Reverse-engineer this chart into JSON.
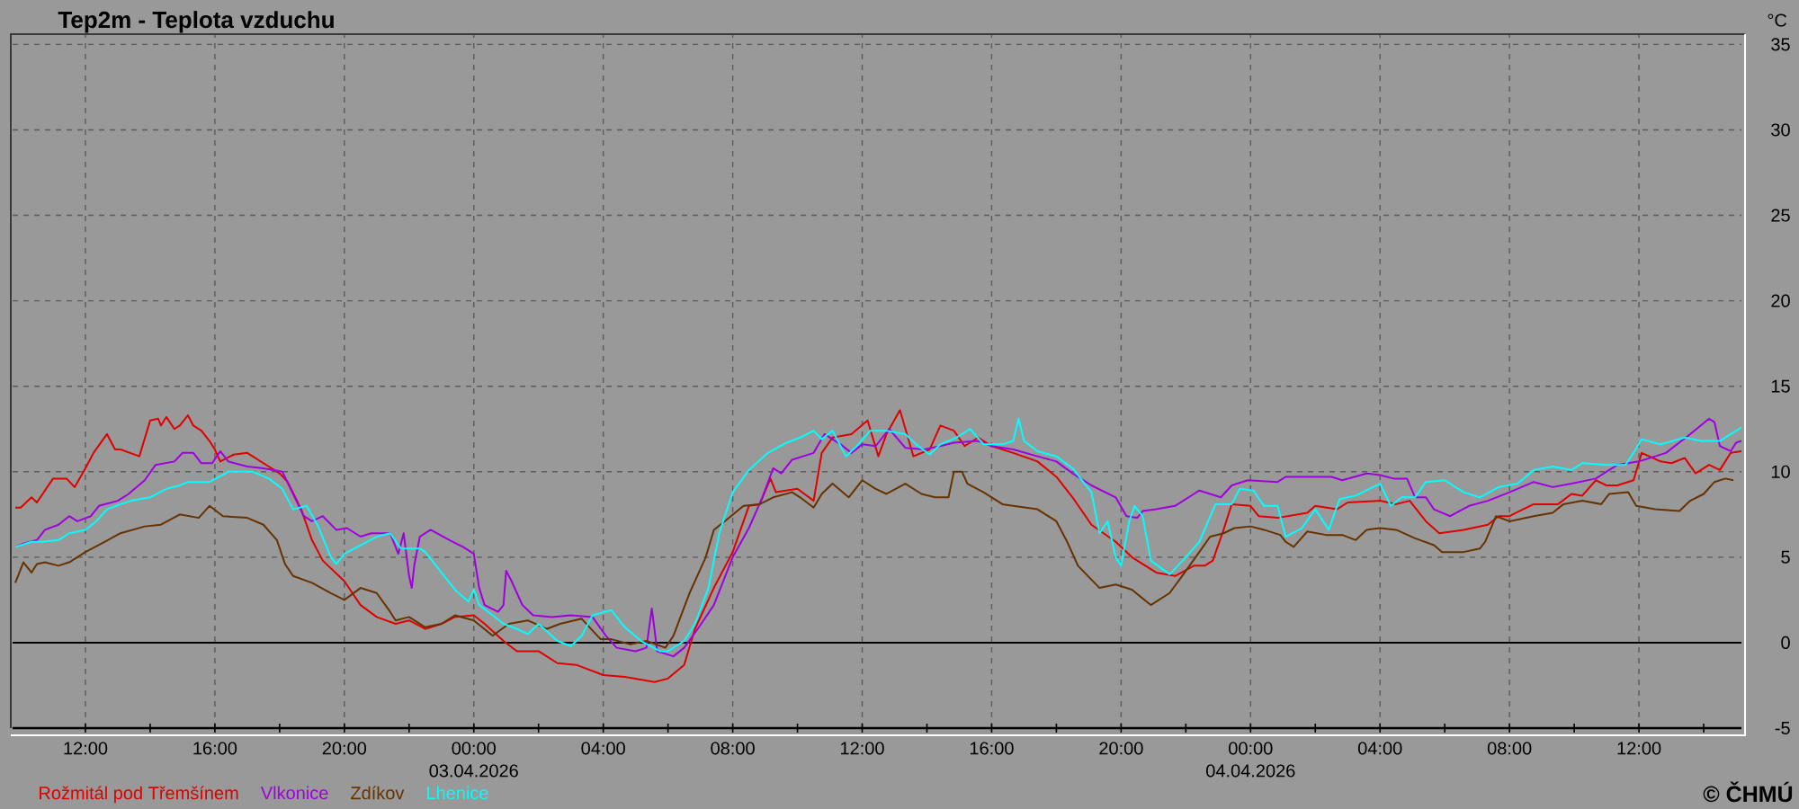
{
  "chart_data": {
    "type": "line",
    "title": "Tep2m - Teplota vzduchu",
    "ylabel": "°C",
    "xlim": [
      "2026-04-02T09:45",
      "2026-04-04T15:10"
    ],
    "ylim": [
      -5,
      35.6
    ],
    "xticks": [
      {
        "value": "2026-04-02T12:00",
        "label": "12:00"
      },
      {
        "value": "2026-04-02T14:00",
        "label": null
      },
      {
        "value": "2026-04-02T16:00",
        "label": "16:00"
      },
      {
        "value": "2026-04-02T18:00",
        "label": null
      },
      {
        "value": "2026-04-02T20:00",
        "label": "20:00"
      },
      {
        "value": "2026-04-02T22:00",
        "label": null
      },
      {
        "value": "2026-04-03T00:00",
        "label": "00:00 03.04.2026"
      },
      {
        "value": "2026-04-03T02:00",
        "label": null
      },
      {
        "value": "2026-04-03T04:00",
        "label": "04:00"
      },
      {
        "value": "2026-04-03T06:00",
        "label": null
      },
      {
        "value": "2026-04-03T08:00",
        "label": "08:00"
      },
      {
        "value": "2026-04-03T10:00",
        "label": null
      },
      {
        "value": "2026-04-03T12:00",
        "label": "12:00"
      },
      {
        "value": "2026-04-03T14:00",
        "label": null
      },
      {
        "value": "2026-04-03T16:00",
        "label": "16:00"
      },
      {
        "value": "2026-04-03T18:00",
        "label": null
      },
      {
        "value": "2026-04-03T20:00",
        "label": "20:00"
      },
      {
        "value": "2026-04-03T22:00",
        "label": null
      },
      {
        "value": "2026-04-04T00:00",
        "label": "00:00 04.04.2026"
      },
      {
        "value": "2026-04-04T02:00",
        "label": null
      },
      {
        "value": "2026-04-04T04:00",
        "label": "04:00"
      },
      {
        "value": "2026-04-04T06:00",
        "label": null
      },
      {
        "value": "2026-04-04T08:00",
        "label": "08:00"
      },
      {
        "value": "2026-04-04T10:00",
        "label": null
      },
      {
        "value": "2026-04-04T12:00",
        "label": "12:00"
      },
      {
        "value": "2026-04-04T14:00",
        "label": null
      }
    ],
    "yticks": [
      -5,
      0,
      5,
      10,
      15,
      20,
      25,
      30,
      35
    ],
    "grid": true,
    "legend": "bottom left",
    "ref_lines": [
      {
        "axis": "y",
        "value": 0,
        "color": "#000000"
      }
    ],
    "annotations": [
      "© ČHMÚ"
    ],
    "series": [
      {
        "name": "Rožmitál pod Třemšínem",
        "color": "#e00000",
        "x": [
          "2026-04-02T09:50",
          "2026-04-02T10:00",
          "2026-04-02T10:20",
          "2026-04-02T10:30",
          "2026-04-02T11:00",
          "2026-04-02T11:25",
          "2026-04-02T11:40",
          "2026-04-02T12:00",
          "2026-04-02T12:15",
          "2026-04-02T12:40",
          "2026-04-02T12:55",
          "2026-04-02T13:05",
          "2026-04-02T13:40",
          "2026-04-02T14:00",
          "2026-04-02T14:15",
          "2026-04-02T14:20",
          "2026-04-02T14:30",
          "2026-04-02T14:45",
          "2026-04-02T14:55",
          "2026-04-02T15:10",
          "2026-04-02T15:20",
          "2026-04-02T15:35",
          "2026-04-02T15:50",
          "2026-04-02T16:00",
          "2026-04-02T16:10",
          "2026-04-02T16:35",
          "2026-04-02T17:00",
          "2026-04-02T17:30",
          "2026-04-02T18:00",
          "2026-04-02T18:15",
          "2026-04-02T18:40",
          "2026-04-02T19:00",
          "2026-04-02T19:20",
          "2026-04-02T20:00",
          "2026-04-02T20:30",
          "2026-04-02T21:00",
          "2026-04-02T21:35",
          "2026-04-02T22:00",
          "2026-04-02T22:30",
          "2026-04-02T23:00",
          "2026-04-02T23:25",
          "2026-04-03T00:00",
          "2026-04-03T00:20",
          "2026-04-03T00:55",
          "2026-04-03T01:20",
          "2026-04-03T02:00",
          "2026-04-03T02:35",
          "2026-04-03T03:10",
          "2026-04-03T04:00",
          "2026-04-03T04:40",
          "2026-04-03T05:35",
          "2026-04-03T06:00",
          "2026-04-03T06:30",
          "2026-04-03T06:50",
          "2026-04-03T07:25",
          "2026-04-03T08:00",
          "2026-04-03T08:30",
          "2026-04-03T08:50",
          "2026-04-03T09:10",
          "2026-04-03T09:20",
          "2026-04-03T10:00",
          "2026-04-03T10:30",
          "2026-04-03T10:45",
          "2026-04-03T11:05",
          "2026-04-03T11:40",
          "2026-04-03T12:10",
          "2026-04-03T12:30",
          "2026-04-03T12:45",
          "2026-04-03T13:10",
          "2026-04-03T13:35",
          "2026-04-03T14:05",
          "2026-04-03T14:25",
          "2026-04-03T14:50",
          "2026-04-03T15:10",
          "2026-04-03T15:35",
          "2026-04-03T16:00",
          "2026-04-03T16:40",
          "2026-04-03T17:25",
          "2026-04-03T18:00",
          "2026-04-03T18:30",
          "2026-04-03T19:05",
          "2026-04-03T19:50",
          "2026-04-03T20:20",
          "2026-04-03T21:05",
          "2026-04-03T21:40",
          "2026-04-03T22:15",
          "2026-04-03T22:35",
          "2026-04-03T22:50",
          "2026-04-03T23:10",
          "2026-04-03T23:25",
          "2026-04-04T00:00",
          "2026-04-04T00:15",
          "2026-04-04T00:50",
          "2026-04-04T01:45",
          "2026-04-04T02:00",
          "2026-04-04T02:40",
          "2026-04-04T03:00",
          "2026-04-04T04:00",
          "2026-04-04T04:30",
          "2026-04-04T04:55",
          "2026-04-04T05:25",
          "2026-04-04T05:50",
          "2026-04-04T06:35",
          "2026-04-04T07:20",
          "2026-04-04T07:40",
          "2026-04-04T08:00",
          "2026-04-04T08:25",
          "2026-04-04T08:45",
          "2026-04-04T09:30",
          "2026-04-04T09:55",
          "2026-04-04T10:15",
          "2026-04-04T10:40",
          "2026-04-04T11:00",
          "2026-04-04T11:20",
          "2026-04-04T11:50",
          "2026-04-04T12:05",
          "2026-04-04T12:40",
          "2026-04-04T13:00",
          "2026-04-04T13:25",
          "2026-04-04T13:45",
          "2026-04-04T14:10",
          "2026-04-04T14:30",
          "2026-04-04T14:50",
          "2026-04-04T15:10"
        ],
        "values": [
          7.9,
          7.9,
          8.5,
          8.2,
          9.6,
          9.6,
          9.1,
          10.2,
          11.1,
          12.2,
          11.3,
          11.3,
          10.9,
          13.0,
          13.1,
          12.7,
          13.2,
          12.5,
          12.7,
          13.3,
          12.7,
          12.4,
          11.8,
          11.3,
          10.6,
          11.0,
          11.1,
          10.5,
          9.9,
          9.4,
          7.8,
          6.0,
          4.8,
          3.6,
          2.2,
          1.5,
          1.1,
          1.3,
          0.8,
          1.1,
          1.5,
          1.6,
          1.1,
          0.1,
          -0.5,
          -0.5,
          -1.2,
          -1.3,
          -1.9,
          -2.0,
          -2.3,
          -2.1,
          -1.3,
          0.8,
          3.2,
          5.3,
          8.0,
          8.1,
          9.6,
          8.8,
          9.0,
          8.3,
          11.1,
          12.0,
          12.2,
          13.0,
          10.9,
          12.2,
          13.6,
          10.9,
          11.3,
          12.7,
          12.4,
          11.5,
          12.0,
          11.5,
          11.1,
          10.6,
          9.7,
          8.5,
          6.9,
          5.9,
          5.0,
          4.1,
          3.9,
          4.5,
          4.5,
          4.8,
          6.6,
          8.1,
          8.0,
          7.4,
          7.3,
          7.6,
          8.0,
          7.8,
          8.2,
          8.3,
          8.1,
          8.3,
          7.1,
          6.4,
          6.6,
          6.9,
          7.4,
          7.4,
          7.8,
          8.1,
          8.1,
          8.7,
          8.6,
          9.5,
          9.2,
          9.2,
          9.5,
          11.1,
          10.6,
          10.5,
          10.8,
          9.9,
          10.4,
          10.1,
          11.1,
          11.2
        ]
      },
      {
        "name": "Vlkonice",
        "color": "#a000e0",
        "x": [
          "2026-04-02T09:50",
          "2026-04-02T10:05",
          "2026-04-02T10:30",
          "2026-04-02T10:45",
          "2026-04-02T11:10",
          "2026-04-02T11:30",
          "2026-04-02T11:45",
          "2026-04-02T12:10",
          "2026-04-02T12:25",
          "2026-04-02T13:00",
          "2026-04-02T13:20",
          "2026-04-02T13:50",
          "2026-04-02T14:10",
          "2026-04-02T14:45",
          "2026-04-02T15:00",
          "2026-04-02T15:20",
          "2026-04-02T15:35",
          "2026-04-02T15:55",
          "2026-04-02T16:10",
          "2026-04-02T16:25",
          "2026-04-02T17:00",
          "2026-04-02T17:30",
          "2026-04-02T18:05",
          "2026-04-02T18:25",
          "2026-04-02T18:45",
          "2026-04-02T19:00",
          "2026-04-02T19:20",
          "2026-04-02T19:45",
          "2026-04-02T20:05",
          "2026-04-02T20:30",
          "2026-04-02T20:50",
          "2026-04-02T21:25",
          "2026-04-02T21:40",
          "2026-04-02T21:50",
          "2026-04-02T22:00",
          "2026-04-02T22:05",
          "2026-04-02T22:10",
          "2026-04-02T22:20",
          "2026-04-02T22:40",
          "2026-04-02T23:15",
          "2026-04-02T23:40",
          "2026-04-03T00:00",
          "2026-04-03T00:10",
          "2026-04-03T00:20",
          "2026-04-03T00:45",
          "2026-04-03T00:55",
          "2026-04-03T01:00",
          "2026-04-03T01:10",
          "2026-04-03T01:30",
          "2026-04-03T01:50",
          "2026-04-03T02:25",
          "2026-04-03T03:00",
          "2026-04-03T03:40",
          "2026-04-03T04:05",
          "2026-04-03T04:25",
          "2026-04-03T05:00",
          "2026-04-03T05:20",
          "2026-04-03T05:30",
          "2026-04-03T05:40",
          "2026-04-03T05:50",
          "2026-04-03T06:10",
          "2026-04-03T06:30",
          "2026-04-03T06:55",
          "2026-04-03T07:25",
          "2026-04-03T08:00",
          "2026-04-03T08:30",
          "2026-04-03T08:55",
          "2026-04-03T09:15",
          "2026-04-03T09:30",
          "2026-04-03T09:50",
          "2026-04-03T10:30",
          "2026-04-03T10:50",
          "2026-04-03T11:20",
          "2026-04-03T11:40",
          "2026-04-03T12:00",
          "2026-04-03T12:25",
          "2026-04-03T12:50",
          "2026-04-03T13:20",
          "2026-04-03T13:55",
          "2026-04-03T14:25",
          "2026-04-03T14:50",
          "2026-04-03T15:35",
          "2026-04-03T16:00",
          "2026-04-03T16:40",
          "2026-04-03T17:25",
          "2026-04-03T18:00",
          "2026-04-03T18:30",
          "2026-04-03T19:05",
          "2026-04-03T19:50",
          "2026-04-03T20:10",
          "2026-04-03T20:30",
          "2026-04-03T20:40",
          "2026-04-03T21:05",
          "2026-04-03T21:40",
          "2026-04-03T22:15",
          "2026-04-03T22:25",
          "2026-04-03T22:45",
          "2026-04-03T23:05",
          "2026-04-03T23:25",
          "2026-04-03T23:55",
          "2026-04-04T00:50",
          "2026-04-04T01:05",
          "2026-04-04T02:30",
          "2026-04-04T02:50",
          "2026-04-04T03:35",
          "2026-04-04T04:00",
          "2026-04-04T04:25",
          "2026-04-04T04:50",
          "2026-04-04T05:05",
          "2026-04-04T05:25",
          "2026-04-04T05:40",
          "2026-04-04T06:10",
          "2026-04-04T06:45",
          "2026-04-04T07:20",
          "2026-04-04T08:00",
          "2026-04-04T08:45",
          "2026-04-04T09:20",
          "2026-04-04T09:55",
          "2026-04-04T10:40",
          "2026-04-04T11:20",
          "2026-04-04T12:00",
          "2026-04-04T12:50",
          "2026-04-04T13:35",
          "2026-04-04T14:10",
          "2026-04-04T14:20",
          "2026-04-04T14:30",
          "2026-04-04T14:50",
          "2026-04-04T15:00",
          "2026-04-04T15:10"
        ],
        "values": [
          5.6,
          5.8,
          6.0,
          6.6,
          6.9,
          7.4,
          7.1,
          7.4,
          8.0,
          8.3,
          8.7,
          9.5,
          10.4,
          10.6,
          11.1,
          11.1,
          10.5,
          10.5,
          11.2,
          10.6,
          10.3,
          10.2,
          10.0,
          8.7,
          7.4,
          7.1,
          7.4,
          6.6,
          6.7,
          6.2,
          6.4,
          6.4,
          5.2,
          6.4,
          3.9,
          3.2,
          4.6,
          6.2,
          6.6,
          6.0,
          5.6,
          5.2,
          3.2,
          2.2,
          1.8,
          2.2,
          4.2,
          3.6,
          2.2,
          1.6,
          1.5,
          1.6,
          1.5,
          0.4,
          -0.3,
          -0.5,
          -0.3,
          2.0,
          -0.5,
          -0.6,
          -0.8,
          -0.3,
          0.8,
          2.2,
          5.0,
          6.7,
          8.5,
          10.2,
          9.9,
          10.7,
          11.1,
          12.2,
          11.6,
          11.1,
          11.6,
          11.5,
          12.5,
          11.4,
          11.3,
          11.5,
          11.7,
          11.8,
          11.5,
          11.3,
          10.9,
          10.6,
          9.9,
          9.2,
          8.5,
          7.4,
          7.3,
          7.7,
          7.8,
          8.0,
          8.7,
          8.9,
          8.7,
          8.5,
          9.2,
          9.5,
          9.4,
          9.7,
          9.7,
          9.5,
          9.9,
          9.8,
          9.6,
          9.6,
          8.5,
          8.5,
          7.8,
          7.4,
          8.0,
          8.3,
          8.8,
          9.4,
          9.1,
          9.3,
          9.6,
          10.4,
          10.6,
          11.1,
          12.2,
          13.1,
          12.9,
          11.5,
          11.2,
          11.7,
          11.8
        ]
      },
      {
        "name": "Zdíkov",
        "color": "#663300",
        "x": [
          "2026-04-02T09:50",
          "2026-04-02T10:05",
          "2026-04-02T10:20",
          "2026-04-02T10:30",
          "2026-04-02T10:45",
          "2026-04-02T11:10",
          "2026-04-02T11:30",
          "2026-04-02T12:00",
          "2026-04-02T12:30",
          "2026-04-02T13:05",
          "2026-04-02T13:50",
          "2026-04-02T14:20",
          "2026-04-02T14:55",
          "2026-04-02T15:30",
          "2026-04-02T15:50",
          "2026-04-02T16:15",
          "2026-04-02T17:00",
          "2026-04-02T17:30",
          "2026-04-02T17:55",
          "2026-04-02T18:10",
          "2026-04-02T18:25",
          "2026-04-02T19:00",
          "2026-04-02T19:35",
          "2026-04-02T20:00",
          "2026-04-02T20:30",
          "2026-04-02T21:00",
          "2026-04-02T21:25",
          "2026-04-02T21:35",
          "2026-04-02T22:00",
          "2026-04-02T22:30",
          "2026-04-02T23:00",
          "2026-04-02T23:25",
          "2026-04-03T00:00",
          "2026-04-03T00:35",
          "2026-04-03T01:05",
          "2026-04-03T01:40",
          "2026-04-03T02:15",
          "2026-04-03T02:40",
          "2026-04-03T03:20",
          "2026-04-03T03:55",
          "2026-04-03T04:15",
          "2026-04-03T04:50",
          "2026-04-03T05:20",
          "2026-04-03T05:55",
          "2026-04-03T06:10",
          "2026-04-03T06:40",
          "2026-04-03T07:10",
          "2026-04-03T07:25",
          "2026-04-03T07:45",
          "2026-04-03T08:20",
          "2026-04-03T08:50",
          "2026-04-03T09:15",
          "2026-04-03T09:50",
          "2026-04-03T10:05",
          "2026-04-03T10:30",
          "2026-04-03T10:45",
          "2026-04-03T11:05",
          "2026-04-03T11:35",
          "2026-04-03T12:00",
          "2026-04-03T12:25",
          "2026-04-03T12:45",
          "2026-04-03T13:20",
          "2026-04-03T13:50",
          "2026-04-03T14:15",
          "2026-04-03T14:40",
          "2026-04-03T14:50",
          "2026-04-03T15:05",
          "2026-04-03T15:15",
          "2026-04-03T15:45",
          "2026-04-03T16:20",
          "2026-04-03T16:40",
          "2026-04-03T17:25",
          "2026-04-03T18:00",
          "2026-04-03T18:20",
          "2026-04-03T18:40",
          "2026-04-03T19:20",
          "2026-04-03T19:50",
          "2026-04-03T20:20",
          "2026-04-03T20:55",
          "2026-04-03T21:30",
          "2026-04-03T22:00",
          "2026-04-03T22:25",
          "2026-04-03T22:45",
          "2026-04-03T23:10",
          "2026-04-03T23:30",
          "2026-04-04T00:00",
          "2026-04-04T00:25",
          "2026-04-04T00:55",
          "2026-04-04T01:05",
          "2026-04-04T01:20",
          "2026-04-04T01:45",
          "2026-04-04T02:20",
          "2026-04-04T02:50",
          "2026-04-04T03:15",
          "2026-04-04T03:35",
          "2026-04-04T04:00",
          "2026-04-04T04:30",
          "2026-04-04T05:05",
          "2026-04-04T05:40",
          "2026-04-04T05:55",
          "2026-04-04T06:35",
          "2026-04-04T07:05",
          "2026-04-04T07:15",
          "2026-04-04T07:35",
          "2026-04-04T08:00",
          "2026-04-04T08:45",
          "2026-04-04T09:20",
          "2026-04-04T09:40",
          "2026-04-04T10:15",
          "2026-04-04T10:50",
          "2026-04-04T11:05",
          "2026-04-04T11:40",
          "2026-04-04T11:55",
          "2026-04-04T12:30",
          "2026-04-04T13:15",
          "2026-04-04T13:35",
          "2026-04-04T14:00",
          "2026-04-04T14:20",
          "2026-04-04T14:40",
          "2026-04-04T14:55"
        ],
        "values": [
          3.5,
          4.7,
          4.1,
          4.6,
          4.7,
          4.5,
          4.7,
          5.3,
          5.8,
          6.4,
          6.8,
          6.9,
          7.5,
          7.3,
          8.0,
          7.4,
          7.3,
          6.9,
          6.0,
          4.6,
          3.9,
          3.5,
          2.9,
          2.5,
          3.2,
          2.9,
          1.8,
          1.3,
          1.5,
          0.9,
          1.1,
          1.6,
          1.3,
          0.4,
          1.1,
          1.3,
          0.8,
          1.1,
          1.4,
          0.2,
          0.2,
          -0.1,
          0.1,
          -0.3,
          0.4,
          2.9,
          5.0,
          6.6,
          7.1,
          8.0,
          8.1,
          8.5,
          8.8,
          8.5,
          7.9,
          8.7,
          9.3,
          8.5,
          9.5,
          9.0,
          8.7,
          9.3,
          8.7,
          8.5,
          8.5,
          10.0,
          10.0,
          9.3,
          8.8,
          8.1,
          8.0,
          7.8,
          7.1,
          5.9,
          4.5,
          3.2,
          3.4,
          3.1,
          2.2,
          2.9,
          4.2,
          5.3,
          6.2,
          6.4,
          6.7,
          6.8,
          6.6,
          6.3,
          5.9,
          5.6,
          6.5,
          6.3,
          6.3,
          6.0,
          6.6,
          6.7,
          6.6,
          6.1,
          5.7,
          5.3,
          5.3,
          5.5,
          5.9,
          7.4,
          7.1,
          7.4,
          7.6,
          8.1,
          8.3,
          8.1,
          8.7,
          8.8,
          8.0,
          7.8,
          7.7,
          8.3,
          8.7,
          9.4,
          9.6,
          9.5
        ]
      },
      {
        "name": "Lhenice",
        "color": "#00ffff",
        "x": [
          "2026-04-02T09:50",
          "2026-04-02T10:20",
          "2026-04-02T10:40",
          "2026-04-02T11:10",
          "2026-04-02T11:30",
          "2026-04-02T12:00",
          "2026-04-02T12:20",
          "2026-04-02T12:40",
          "2026-04-02T13:05",
          "2026-04-02T13:25",
          "2026-04-02T14:00",
          "2026-04-02T14:30",
          "2026-04-02T14:55",
          "2026-04-02T15:10",
          "2026-04-02T15:50",
          "2026-04-02T16:25",
          "2026-04-02T17:10",
          "2026-04-02T17:40",
          "2026-04-02T18:05",
          "2026-04-02T18:25",
          "2026-04-02T18:50",
          "2026-04-02T19:10",
          "2026-04-02T19:35",
          "2026-04-02T19:45",
          "2026-04-02T20:00",
          "2026-04-02T20:30",
          "2026-04-02T21:00",
          "2026-04-02T21:25",
          "2026-04-02T21:45",
          "2026-04-02T22:20",
          "2026-04-02T22:30",
          "2026-04-02T22:50",
          "2026-04-02T23:25",
          "2026-04-02T23:50",
          "2026-04-03T00:00",
          "2026-04-03T00:10",
          "2026-04-03T00:35",
          "2026-04-03T00:55",
          "2026-04-03T01:20",
          "2026-04-03T01:40",
          "2026-04-03T02:00",
          "2026-04-03T02:35",
          "2026-04-03T03:00",
          "2026-04-03T03:20",
          "2026-04-03T03:40",
          "2026-04-03T04:15",
          "2026-04-03T04:40",
          "2026-04-03T05:10",
          "2026-04-03T05:45",
          "2026-04-03T06:00",
          "2026-04-03T06:30",
          "2026-04-03T06:50",
          "2026-04-03T07:15",
          "2026-04-03T07:35",
          "2026-04-03T08:00",
          "2026-04-03T08:30",
          "2026-04-03T09:05",
          "2026-04-03T09:40",
          "2026-04-03T10:05",
          "2026-04-03T10:30",
          "2026-04-03T10:45",
          "2026-04-03T11:05",
          "2026-04-03T11:30",
          "2026-04-03T11:50",
          "2026-04-03T12:15",
          "2026-04-03T12:45",
          "2026-04-03T13:20",
          "2026-04-03T13:40",
          "2026-04-03T14:05",
          "2026-04-03T14:25",
          "2026-04-03T14:55",
          "2026-04-03T15:20",
          "2026-04-03T15:45",
          "2026-04-03T16:20",
          "2026-04-03T16:40",
          "2026-04-03T16:50",
          "2026-04-03T17:00",
          "2026-04-03T17:25",
          "2026-04-03T18:00",
          "2026-04-03T18:30",
          "2026-04-03T19:05",
          "2026-04-03T19:20",
          "2026-04-03T19:35",
          "2026-04-03T19:50",
          "2026-04-03T20:00",
          "2026-04-03T20:15",
          "2026-04-03T20:25",
          "2026-04-03T20:40",
          "2026-04-03T20:55",
          "2026-04-03T21:30",
          "2026-04-03T22:00",
          "2026-04-03T22:25",
          "2026-04-03T22:55",
          "2026-04-03T23:25",
          "2026-04-03T23:40",
          "2026-04-04T00:05",
          "2026-04-04T00:25",
          "2026-04-04T00:50",
          "2026-04-04T01:05",
          "2026-04-04T01:35",
          "2026-04-04T02:00",
          "2026-04-04T02:25",
          "2026-04-04T02:45",
          "2026-04-04T03:15",
          "2026-04-04T04:00",
          "2026-04-04T04:20",
          "2026-04-04T04:40",
          "2026-04-04T05:05",
          "2026-04-04T05:25",
          "2026-04-04T06:00",
          "2026-04-04T06:35",
          "2026-04-04T07:05",
          "2026-04-04T07:40",
          "2026-04-04T08:15",
          "2026-04-04T08:45",
          "2026-04-04T09:20",
          "2026-04-04T09:55",
          "2026-04-04T10:15",
          "2026-04-04T11:00",
          "2026-04-04T11:35",
          "2026-04-04T11:50",
          "2026-04-04T12:05",
          "2026-04-04T12:40",
          "2026-04-04T13:25",
          "2026-04-04T13:55",
          "2026-04-04T14:30",
          "2026-04-04T14:50",
          "2026-04-04T15:10"
        ],
        "values": [
          5.6,
          5.9,
          5.9,
          6.0,
          6.4,
          6.6,
          7.1,
          7.8,
          8.1,
          8.3,
          8.5,
          9.0,
          9.2,
          9.4,
          9.4,
          10.0,
          10.0,
          9.6,
          9.0,
          7.8,
          8.0,
          6.9,
          5.0,
          4.6,
          5.2,
          5.7,
          6.2,
          6.4,
          5.5,
          5.5,
          5.3,
          4.5,
          3.1,
          2.4,
          3.1,
          2.2,
          1.6,
          1.1,
          0.8,
          0.5,
          1.1,
          0.1,
          -0.2,
          0.4,
          1.6,
          1.9,
          0.9,
          0.1,
          -0.5,
          -0.5,
          0.1,
          1.1,
          3.2,
          6.4,
          8.8,
          10.1,
          11.1,
          11.7,
          12.0,
          12.4,
          11.9,
          12.4,
          10.9,
          11.5,
          12.4,
          12.4,
          12.2,
          11.6,
          11.0,
          11.6,
          12.0,
          12.5,
          11.6,
          11.6,
          11.8,
          13.1,
          11.8,
          11.2,
          10.9,
          10.2,
          8.8,
          6.4,
          7.1,
          5.0,
          4.5,
          7.1,
          8.0,
          7.4,
          4.8,
          4.0,
          5.0,
          5.9,
          8.1,
          8.1,
          9.0,
          8.9,
          8.0,
          8.0,
          6.2,
          6.7,
          7.8,
          6.6,
          8.4,
          8.6,
          9.3,
          8.0,
          8.5,
          8.5,
          9.4,
          9.5,
          8.8,
          8.5,
          9.1,
          9.3,
          10.1,
          10.3,
          10.1,
          10.5,
          10.4,
          10.4,
          11.1,
          11.9,
          11.6,
          12.0,
          11.8,
          11.8,
          12.2,
          12.6
        ]
      }
    ]
  }
}
